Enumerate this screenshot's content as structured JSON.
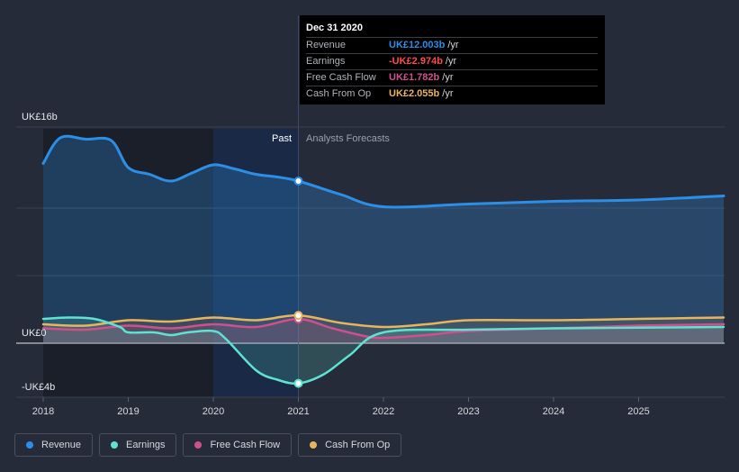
{
  "chart_data": {
    "type": "line",
    "x_domain": [
      2018,
      2026
    ],
    "y_domain": [
      -4,
      16
    ],
    "x_ticks": [
      {
        "value": 2018,
        "label": "2018"
      },
      {
        "value": 2019,
        "label": "2019"
      },
      {
        "value": 2020,
        "label": "2020"
      },
      {
        "value": 2021,
        "label": "2021"
      },
      {
        "value": 2022,
        "label": "2022"
      },
      {
        "value": 2023,
        "label": "2023"
      },
      {
        "value": 2024,
        "label": "2024"
      },
      {
        "value": 2025,
        "label": "2025"
      }
    ],
    "y_labels": [
      {
        "value": 16,
        "label": "UK£16b"
      },
      {
        "value": 0,
        "label": "UK£0"
      },
      {
        "value": -4,
        "label": "-UK£4b"
      }
    ],
    "y_gridlines": [
      16,
      10,
      5,
      0
    ],
    "past_label": "Past",
    "forecast_label": "Analysts Forecasts",
    "past_cutoff": 2021,
    "highlight_range": [
      2020,
      2021
    ],
    "series": [
      {
        "name": "Revenue",
        "color": "#2d8ee6",
        "points": [
          [
            2018,
            13.3
          ],
          [
            2018.2,
            15.2
          ],
          [
            2018.5,
            15.1
          ],
          [
            2018.8,
            15.0
          ],
          [
            2019.0,
            13.0
          ],
          [
            2019.25,
            12.5
          ],
          [
            2019.5,
            12.0
          ],
          [
            2019.75,
            12.6
          ],
          [
            2020.0,
            13.2
          ],
          [
            2020.25,
            12.9
          ],
          [
            2020.5,
            12.5
          ],
          [
            2020.75,
            12.3
          ],
          [
            2021.0,
            12.003
          ],
          [
            2021.5,
            11.0
          ],
          [
            2022.0,
            10.1
          ],
          [
            2023.0,
            10.3
          ],
          [
            2024.0,
            10.5
          ],
          [
            2025.0,
            10.6
          ],
          [
            2026.0,
            10.9
          ]
        ]
      },
      {
        "name": "Earnings",
        "color": "#5ee3d2",
        "points": [
          [
            2018,
            1.8
          ],
          [
            2018.3,
            1.9
          ],
          [
            2018.6,
            1.8
          ],
          [
            2018.9,
            1.2
          ],
          [
            2019.0,
            0.8
          ],
          [
            2019.3,
            0.8
          ],
          [
            2019.5,
            0.6
          ],
          [
            2019.7,
            0.8
          ],
          [
            2020.0,
            0.9
          ],
          [
            2020.15,
            0.3
          ],
          [
            2020.5,
            -2.0
          ],
          [
            2020.75,
            -2.7
          ],
          [
            2021.0,
            -2.974
          ],
          [
            2021.3,
            -2.3
          ],
          [
            2021.6,
            -0.9
          ],
          [
            2022.0,
            0.8
          ],
          [
            2023.0,
            1.0
          ],
          [
            2024.0,
            1.1
          ],
          [
            2025.0,
            1.15
          ],
          [
            2026.0,
            1.2
          ]
        ]
      },
      {
        "name": "Free Cash Flow",
        "color": "#d0508e",
        "points": [
          [
            2018,
            1.1
          ],
          [
            2018.5,
            1.0
          ],
          [
            2019.0,
            1.3
          ],
          [
            2019.5,
            1.1
          ],
          [
            2020.0,
            1.4
          ],
          [
            2020.5,
            1.2
          ],
          [
            2021.0,
            1.782
          ],
          [
            2021.4,
            1.1
          ],
          [
            2021.8,
            0.5
          ],
          [
            2022.0,
            0.4
          ],
          [
            2022.5,
            0.6
          ],
          [
            2023.0,
            0.9
          ],
          [
            2024.0,
            1.1
          ],
          [
            2025.0,
            1.3
          ],
          [
            2026.0,
            1.4
          ]
        ]
      },
      {
        "name": "Cash From Op",
        "color": "#e8b45c",
        "points": [
          [
            2018,
            1.4
          ],
          [
            2018.5,
            1.3
          ],
          [
            2019.0,
            1.7
          ],
          [
            2019.5,
            1.6
          ],
          [
            2020.0,
            1.9
          ],
          [
            2020.5,
            1.7
          ],
          [
            2021.0,
            2.055
          ],
          [
            2021.5,
            1.5
          ],
          [
            2022.0,
            1.2
          ],
          [
            2022.5,
            1.4
          ],
          [
            2023.0,
            1.7
          ],
          [
            2024.0,
            1.7
          ],
          [
            2025.0,
            1.8
          ],
          [
            2026.0,
            1.9
          ]
        ]
      }
    ],
    "highlight_points": [
      {
        "series": "Revenue",
        "x": 2021,
        "y": 12.003
      },
      {
        "series": "Earnings",
        "x": 2021,
        "y": -2.974
      },
      {
        "series": "Free Cash Flow",
        "x": 2021,
        "y": 1.782
      },
      {
        "series": "Cash From Op",
        "x": 2021,
        "y": 2.055
      }
    ]
  },
  "tooltip": {
    "title": "Dec 31 2020",
    "rows": [
      {
        "name": "Revenue",
        "value": "UK£12.003b",
        "unit": "/yr",
        "color": "#2d8ee6"
      },
      {
        "name": "Earnings",
        "value": "-UK£2.974b",
        "unit": "/yr",
        "color": "#ff4a4a"
      },
      {
        "name": "Free Cash Flow",
        "value": "UK£1.782b",
        "unit": "/yr",
        "color": "#d0508e"
      },
      {
        "name": "Cash From Op",
        "value": "UK£2.055b",
        "unit": "/yr",
        "color": "#e8b45c"
      }
    ]
  },
  "legend": [
    {
      "label": "Revenue",
      "color": "#2d8ee6"
    },
    {
      "label": "Earnings",
      "color": "#5ee3d2"
    },
    {
      "label": "Free Cash Flow",
      "color": "#d0508e"
    },
    {
      "label": "Cash From Op",
      "color": "#e8b45c"
    }
  ]
}
